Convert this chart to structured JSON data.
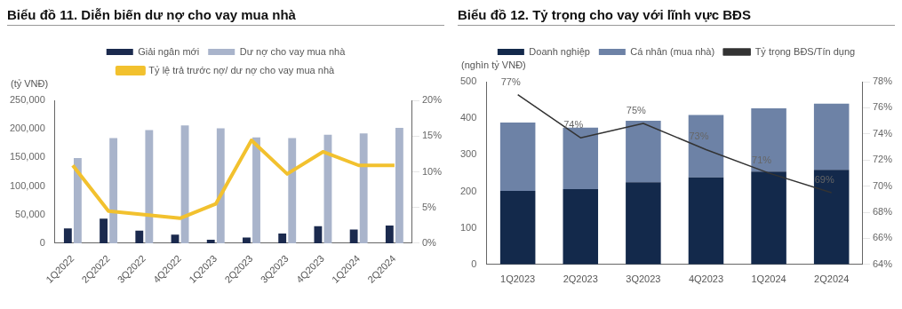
{
  "chart_data": [
    {
      "type": "bar",
      "title": "Biểu đồ 11. Diễn biến dư nợ cho vay mua nhà",
      "ylabel": "(tỷ VNĐ)",
      "categories": [
        "1Q2022",
        "2Q2022",
        "3Q2022",
        "4Q2022",
        "1Q2023",
        "2Q2023",
        "3Q2023",
        "4Q2023",
        "1Q2024",
        "2Q2024"
      ],
      "series": [
        {
          "name": "Giải ngân mới",
          "color": "#1b2a4e",
          "values": [
            26000,
            43000,
            22000,
            15000,
            6000,
            10000,
            17000,
            30000,
            24000,
            31000
          ]
        },
        {
          "name": "Dư nợ cho vay mua nhà",
          "color": "#a9b4cb",
          "values": [
            149000,
            184000,
            198000,
            206000,
            201000,
            185000,
            184000,
            190000,
            192000,
            202000
          ]
        },
        {
          "name": "Tỷ lệ trả trước nợ/ dư nợ cho vay mua nhà",
          "type": "line",
          "axis": "y2",
          "color": "#f2c12e",
          "values": [
            10.9,
            4.5,
            4.0,
            3.5,
            5.5,
            14.4,
            9.7,
            12.8,
            10.9,
            10.9
          ]
        }
      ],
      "ylim": [
        0,
        250000
      ],
      "yticks": [
        {
          "value": 0,
          "label": "0"
        },
        {
          "value": 50000,
          "label": "50,000"
        },
        {
          "value": 100000,
          "label": "100,000"
        },
        {
          "value": 150000,
          "label": "150,000"
        },
        {
          "value": 200000,
          "label": "200,000"
        },
        {
          "value": 250000,
          "label": "250,000"
        }
      ],
      "y2lim": [
        0,
        20
      ],
      "y2ticks": [
        {
          "value": 0,
          "label": "0%"
        },
        {
          "value": 5,
          "label": "5%"
        },
        {
          "value": 10,
          "label": "10%"
        },
        {
          "value": 15,
          "label": "15%"
        },
        {
          "value": 20,
          "label": "20%"
        }
      ],
      "grid": false,
      "legend": "top",
      "marker": "none"
    },
    {
      "type": "bar",
      "title": "Biểu đồ 12. Tỷ trọng cho vay với lĩnh vực BĐS",
      "ylabel": "(nghìn tỷ VNĐ)",
      "stacked": true,
      "categories": [
        "1Q2023",
        "2Q2023",
        "3Q2023",
        "4Q2023",
        "1Q2024",
        "2Q2024"
      ],
      "series": [
        {
          "name": "Doanh nghiệp",
          "color": "#13294b",
          "values": [
            201,
            206,
            225,
            238,
            254,
            259
          ]
        },
        {
          "name": "Cá nhân (mua nhà)",
          "color": "#6d82a6",
          "values": [
            187,
            168,
            168,
            171,
            173,
            181
          ]
        },
        {
          "name": "Tỷ trọng BĐS/Tín dụng",
          "type": "line",
          "axis": "y2",
          "color": "#333333",
          "values": [
            77,
            73.7,
            74.8,
            72.8,
            71,
            69.5
          ],
          "value_labels": [
            "77%",
            "74%",
            "75%",
            "73%",
            "71%",
            "69%"
          ]
        }
      ],
      "ylim": [
        0,
        500
      ],
      "yticks": [
        0,
        100,
        200,
        300,
        400,
        500
      ],
      "y2lim": [
        64,
        78
      ],
      "y2ticks": [
        {
          "value": 64,
          "label": "64%"
        },
        {
          "value": 66,
          "label": "66%"
        },
        {
          "value": 68,
          "label": "68%"
        },
        {
          "value": 70,
          "label": "70%"
        },
        {
          "value": 72,
          "label": "72%"
        },
        {
          "value": 74,
          "label": "74%"
        },
        {
          "value": 76,
          "label": "76%"
        },
        {
          "value": 78,
          "label": "78%"
        }
      ],
      "grid": false,
      "legend": "top",
      "marker": "none"
    }
  ]
}
